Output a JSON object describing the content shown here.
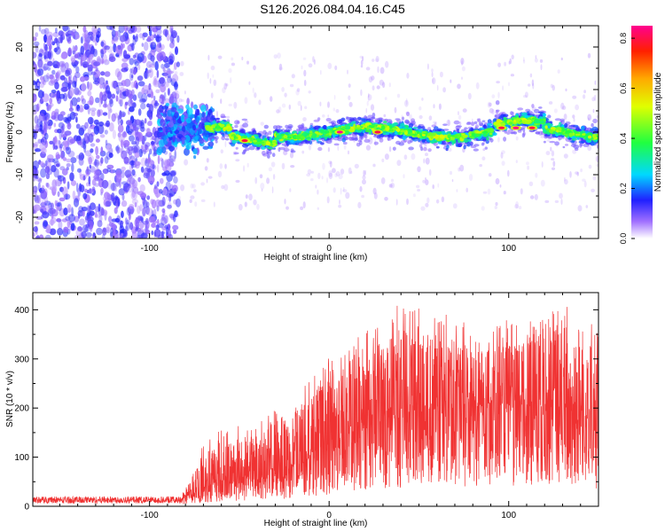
{
  "title": "S126.2026.084.04.16.C45",
  "colors": {
    "snr_line": "#f03232",
    "axis": "#000000"
  },
  "chart_data": [
    {
      "type": "heatmap",
      "name": "spectrogram",
      "xlabel": "Height of straight line (km)",
      "ylabel": "Frequency (Hz)",
      "xlim": [
        -165,
        150
      ],
      "ylim": [
        -25,
        25
      ],
      "x_ticks": [
        -100,
        0,
        100
      ],
      "y_ticks": [
        -20,
        -10,
        0,
        10,
        20
      ],
      "colorbar": {
        "label": "Normalized spectral amplitude",
        "range": [
          0,
          0.85
        ],
        "ticks": [
          "0.0",
          "0.2",
          "0.4",
          "0.6",
          "0.8"
        ]
      },
      "regions": [
        {
          "name": "noise",
          "x": [
            -165,
            -92
          ],
          "y": [
            -25,
            25
          ],
          "amplitude": 0.05
        },
        {
          "name": "onset",
          "x": [
            -95,
            -65
          ],
          "center_freq": 1,
          "half_width": 5,
          "amplitude": 0.2
        },
        {
          "name": "signal",
          "x": [
            -65,
            150
          ],
          "center_freq": 0,
          "half_width": 2.5,
          "amplitude": 0.5
        }
      ],
      "peaks": [
        {
          "x": -47,
          "freq": -2,
          "value": 0.8
        },
        {
          "x": 6,
          "freq": 0,
          "value": 0.85
        },
        {
          "x": 27,
          "freq": 0,
          "value": 0.8
        },
        {
          "x": 96,
          "freq": 1,
          "value": 0.8
        },
        {
          "x": 104,
          "freq": 1,
          "value": 0.85
        },
        {
          "x": 113,
          "freq": 1,
          "value": 0.8
        }
      ]
    },
    {
      "type": "line",
      "name": "snr",
      "xlabel": "Height of straight line (km)",
      "ylabel": "SNR (10 * v/v)",
      "xlim": [
        -165,
        150
      ],
      "ylim": [
        0,
        435
      ],
      "x_ticks": [
        -100,
        0,
        100
      ],
      "y_ticks": [
        0,
        100,
        200,
        300,
        400
      ],
      "envelope": {
        "x": [
          -165,
          -100,
          -80,
          -70,
          -60,
          -40,
          -20,
          0,
          20,
          40,
          60,
          80,
          100,
          120,
          140,
          150
        ],
        "mean": [
          12,
          12,
          18,
          35,
          50,
          65,
          80,
          120,
          170,
          190,
          195,
          200,
          205,
          200,
          180,
          160
        ],
        "max": [
          22,
          25,
          35,
          140,
          160,
          170,
          230,
          310,
          360,
          420,
          400,
          370,
          380,
          420,
          410,
          360
        ]
      }
    }
  ]
}
